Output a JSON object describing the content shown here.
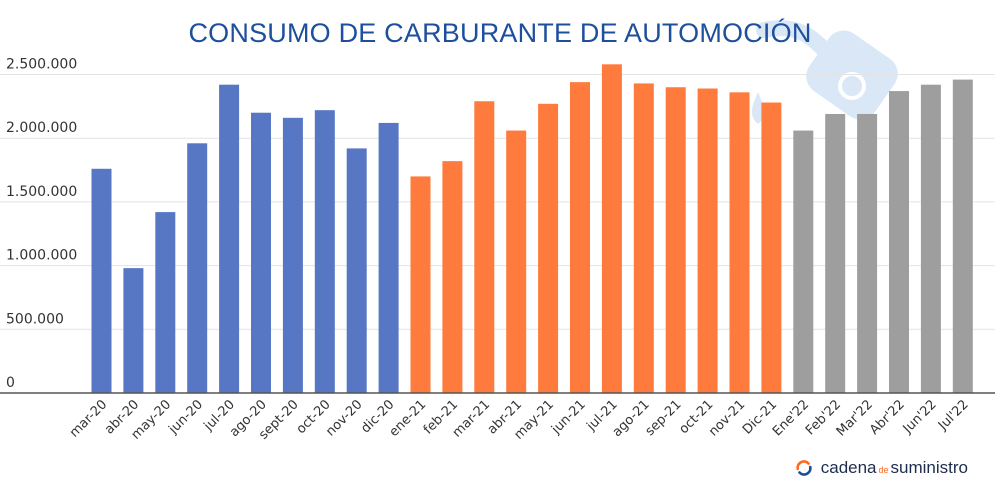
{
  "chart_data": {
    "type": "bar",
    "title": "CONSUMO DE CARBURANTE DE AUTOMOCIÓN",
    "xlabel": "",
    "ylabel": "",
    "ylim": [
      0,
      2600000
    ],
    "grid": true,
    "legend": "none",
    "yticks": [
      "0",
      "500.000",
      "1.000.000",
      "1.500.000",
      "2.000.000",
      "2.500.000"
    ],
    "ytick_values": [
      0,
      500000,
      1000000,
      1500000,
      2000000,
      2500000
    ],
    "categories": [
      "mar-20",
      "abr-20",
      "may-20",
      "jun-20",
      "jul-20",
      "ago-20",
      "sept-20",
      "oct-20",
      "nov-20",
      "dic-20",
      "ene-21",
      "feb-21",
      "mar-21",
      "abr-21",
      "may-21",
      "jun-21",
      "jul-21",
      "ago-21",
      "sep-21",
      "oct-21",
      "nov-21",
      "Dic-21",
      "Ene'22",
      "Feb'22",
      "Mar'22",
      "Abr'22",
      "Jun'22",
      "Jul'22"
    ],
    "values": [
      1760000,
      980000,
      1420000,
      1960000,
      2420000,
      2200000,
      2160000,
      2220000,
      1920000,
      2120000,
      1700000,
      1820000,
      2290000,
      2060000,
      2270000,
      2440000,
      2580000,
      2430000,
      2400000,
      2390000,
      2360000,
      2280000,
      2060000,
      2190000,
      2190000,
      2370000,
      2420000,
      2460000
    ],
    "bar_colors": [
      "#5776c4",
      "#5776c4",
      "#5776c4",
      "#5776c4",
      "#5776c4",
      "#5776c4",
      "#5776c4",
      "#5776c4",
      "#5776c4",
      "#5776c4",
      "#ff7b3d",
      "#ff7b3d",
      "#ff7b3d",
      "#ff7b3d",
      "#ff7b3d",
      "#ff7b3d",
      "#ff7b3d",
      "#ff7b3d",
      "#ff7b3d",
      "#ff7b3d",
      "#ff7b3d",
      "#ff7b3d",
      "#9e9e9e",
      "#9e9e9e",
      "#9e9e9e",
      "#9e9e9e",
      "#9e9e9e",
      "#9e9e9e"
    ]
  },
  "colors": {
    "series_2020": "#5776c4",
    "series_2021": "#ff7b3d",
    "series_2022": "#9e9e9e",
    "title": "#1d4f9c",
    "watermark": "#d6e5f7"
  },
  "watermark_icon": "fuel-nozzle-icon",
  "brand": {
    "icon": "arrows-circle-icon",
    "part1": "cadena",
    "part2": "de",
    "part3": "suministro"
  }
}
